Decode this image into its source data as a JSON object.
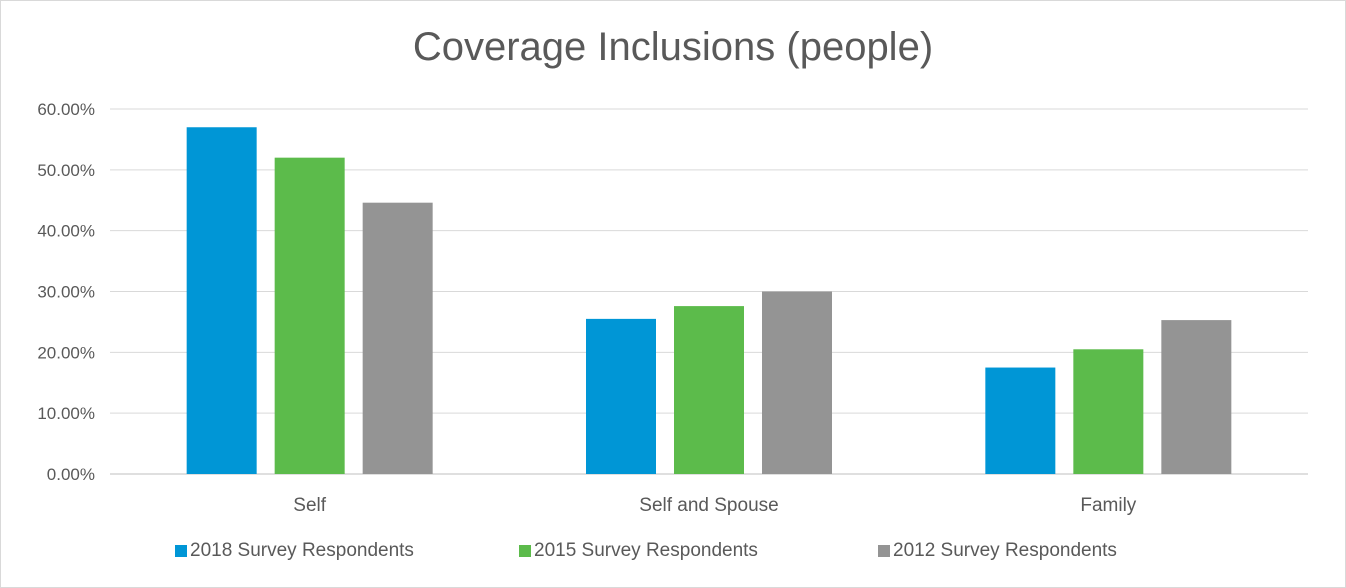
{
  "chart_data": {
    "type": "bar",
    "title": "Coverage Inclusions (people)",
    "xlabel": "",
    "ylabel": "",
    "categories": [
      "Self",
      "Self and Spouse",
      "Family"
    ],
    "series": [
      {
        "name": "2018 Survey Respondents",
        "color": "#0096d6",
        "values": [
          0.57,
          0.255,
          0.175
        ]
      },
      {
        "name": "2015 Survey Respondents",
        "color": "#5cbb4b",
        "values": [
          0.52,
          0.276,
          0.205
        ]
      },
      {
        "name": "2012 Survey Respondents",
        "color": "#949494",
        "values": [
          0.446,
          0.3,
          0.253
        ]
      }
    ],
    "ylim": [
      0,
      0.6
    ],
    "yticks": [
      "0.00%",
      "10.00%",
      "20.00%",
      "30.00%",
      "40.00%",
      "50.00%",
      "60.00%"
    ],
    "grid": true,
    "legend_position": "bottom"
  }
}
